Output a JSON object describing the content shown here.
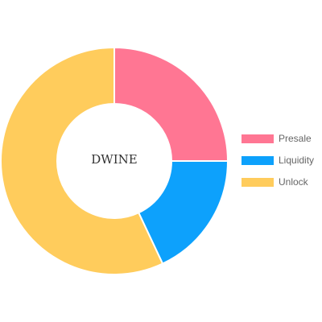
{
  "chart_data": {
    "type": "pie",
    "variant": "doughnut",
    "title": "",
    "center_label": "DWINE",
    "categories": [
      "Presale",
      "Liquidity",
      "Unlock"
    ],
    "values": [
      25,
      18,
      57
    ],
    "colors": [
      "#FF7693",
      "#0DA1FC",
      "#FFCC5C"
    ],
    "legend": {
      "position": "right",
      "items": [
        {
          "label": "Presale",
          "color": "#FF7693"
        },
        {
          "label": "Liquidity",
          "color": "#0DA1FC"
        },
        {
          "label": "Unlock",
          "color": "#FFCC5C"
        }
      ]
    }
  }
}
